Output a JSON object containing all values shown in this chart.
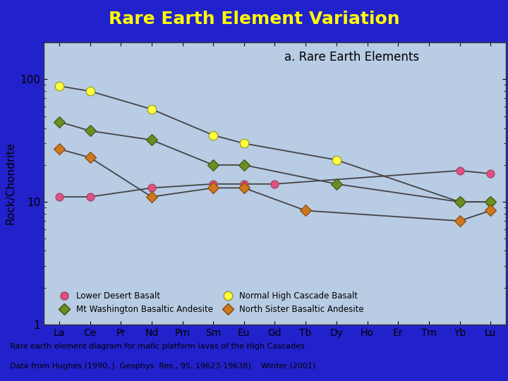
{
  "title": "Rare Earth Element Variation",
  "title_color": "#FFFF00",
  "title_bg_color": "#2222CC",
  "plot_bg_color": "#B8CCE4",
  "outer_bg_color": "#2222CC",
  "annotation": "a. Rare Earth Elements",
  "xlabel_elements": [
    "La",
    "Ce",
    "Pr",
    "Nd",
    "Pm",
    "Sm",
    "Eu",
    "Gd",
    "Tb",
    "Dy",
    "Ho",
    "Er",
    "Tm",
    "Yb",
    "Lu"
  ],
  "ylabel": "Rock/Chondrite",
  "caption_line1": "Rare earth element diagram for mafic platform lavas of the High Cascades.",
  "caption_line2": "Data from Hughes (1990, J. Geophys. Res., 95, 19623-19638).   Winter (2001)",
  "caption_color": "#000000",
  "series": [
    {
      "name": "Lower Desert Basalt",
      "line_color": "#444444",
      "marker": "o",
      "marker_face": "#E05080",
      "marker_edge": "#994466",
      "markersize": 8,
      "values": [
        11,
        11,
        null,
        13,
        null,
        14,
        14,
        14,
        null,
        null,
        null,
        null,
        null,
        18,
        17
      ]
    },
    {
      "name": "Normal High Cascade Basalt",
      "line_color": "#444444",
      "marker": "o",
      "marker_face": "#FFFF44",
      "marker_edge": "#999900",
      "markersize": 9,
      "values": [
        88,
        80,
        null,
        57,
        null,
        35,
        30,
        null,
        null,
        22,
        null,
        null,
        null,
        10,
        10
      ]
    },
    {
      "name": "Mt Washington Basaltic Andesite",
      "line_color": "#444444",
      "marker": "D",
      "marker_face": "#6B8E23",
      "marker_edge": "#3A5010",
      "markersize": 8,
      "values": [
        45,
        38,
        null,
        32,
        null,
        20,
        20,
        null,
        null,
        14,
        null,
        null,
        null,
        10,
        10
      ]
    },
    {
      "name": "North Sister Basaltic Andesite",
      "line_color": "#444444",
      "marker": "D",
      "marker_face": "#CC7722",
      "marker_edge": "#884400",
      "markersize": 8,
      "values": [
        27,
        23,
        null,
        11,
        null,
        13,
        13,
        null,
        8.5,
        null,
        null,
        null,
        null,
        7,
        8.5
      ]
    }
  ]
}
